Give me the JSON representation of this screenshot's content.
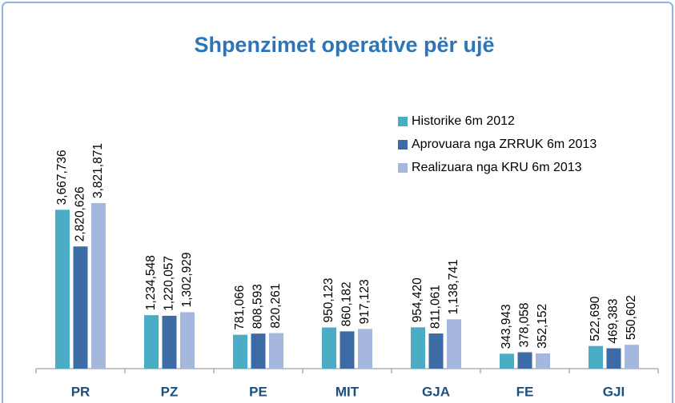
{
  "chart_data": {
    "type": "bar",
    "title": "Shpenzimet operative për ujë",
    "categories": [
      "PR",
      "PZ",
      "PE",
      "MIT",
      "GJA",
      "FE",
      "GJI"
    ],
    "series": [
      {
        "name": "Historike 6m 2012",
        "color": "#4bacc6",
        "values": [
          3667736,
          1234548,
          781066,
          950123,
          954420,
          343943,
          522690
        ],
        "value_labels": [
          "3,667,736",
          "1,234,548",
          "781,066",
          "950,123",
          "954,420",
          "343,943",
          "522,690"
        ]
      },
      {
        "name": "Aprovuara nga ZRRUK 6m 2013",
        "color": "#3d6ba6",
        "values": [
          2820626,
          1220057,
          808593,
          860182,
          811061,
          378058,
          469383
        ],
        "value_labels": [
          "2,820,626",
          "1,220,057",
          "808,593",
          "860,182",
          "811,061",
          "378,058",
          "469,383"
        ]
      },
      {
        "name": "Realizuara nga KRU 6m 2013",
        "color": "#a6b7de",
        "values": [
          3821871,
          1302929,
          820261,
          917123,
          1138741,
          352152,
          550602
        ],
        "value_labels": [
          "3,821,871",
          "1,302,929",
          "820,261",
          "917,123",
          "1,138,741",
          "352,152",
          "550,602"
        ]
      }
    ],
    "legend": "top-right"
  }
}
